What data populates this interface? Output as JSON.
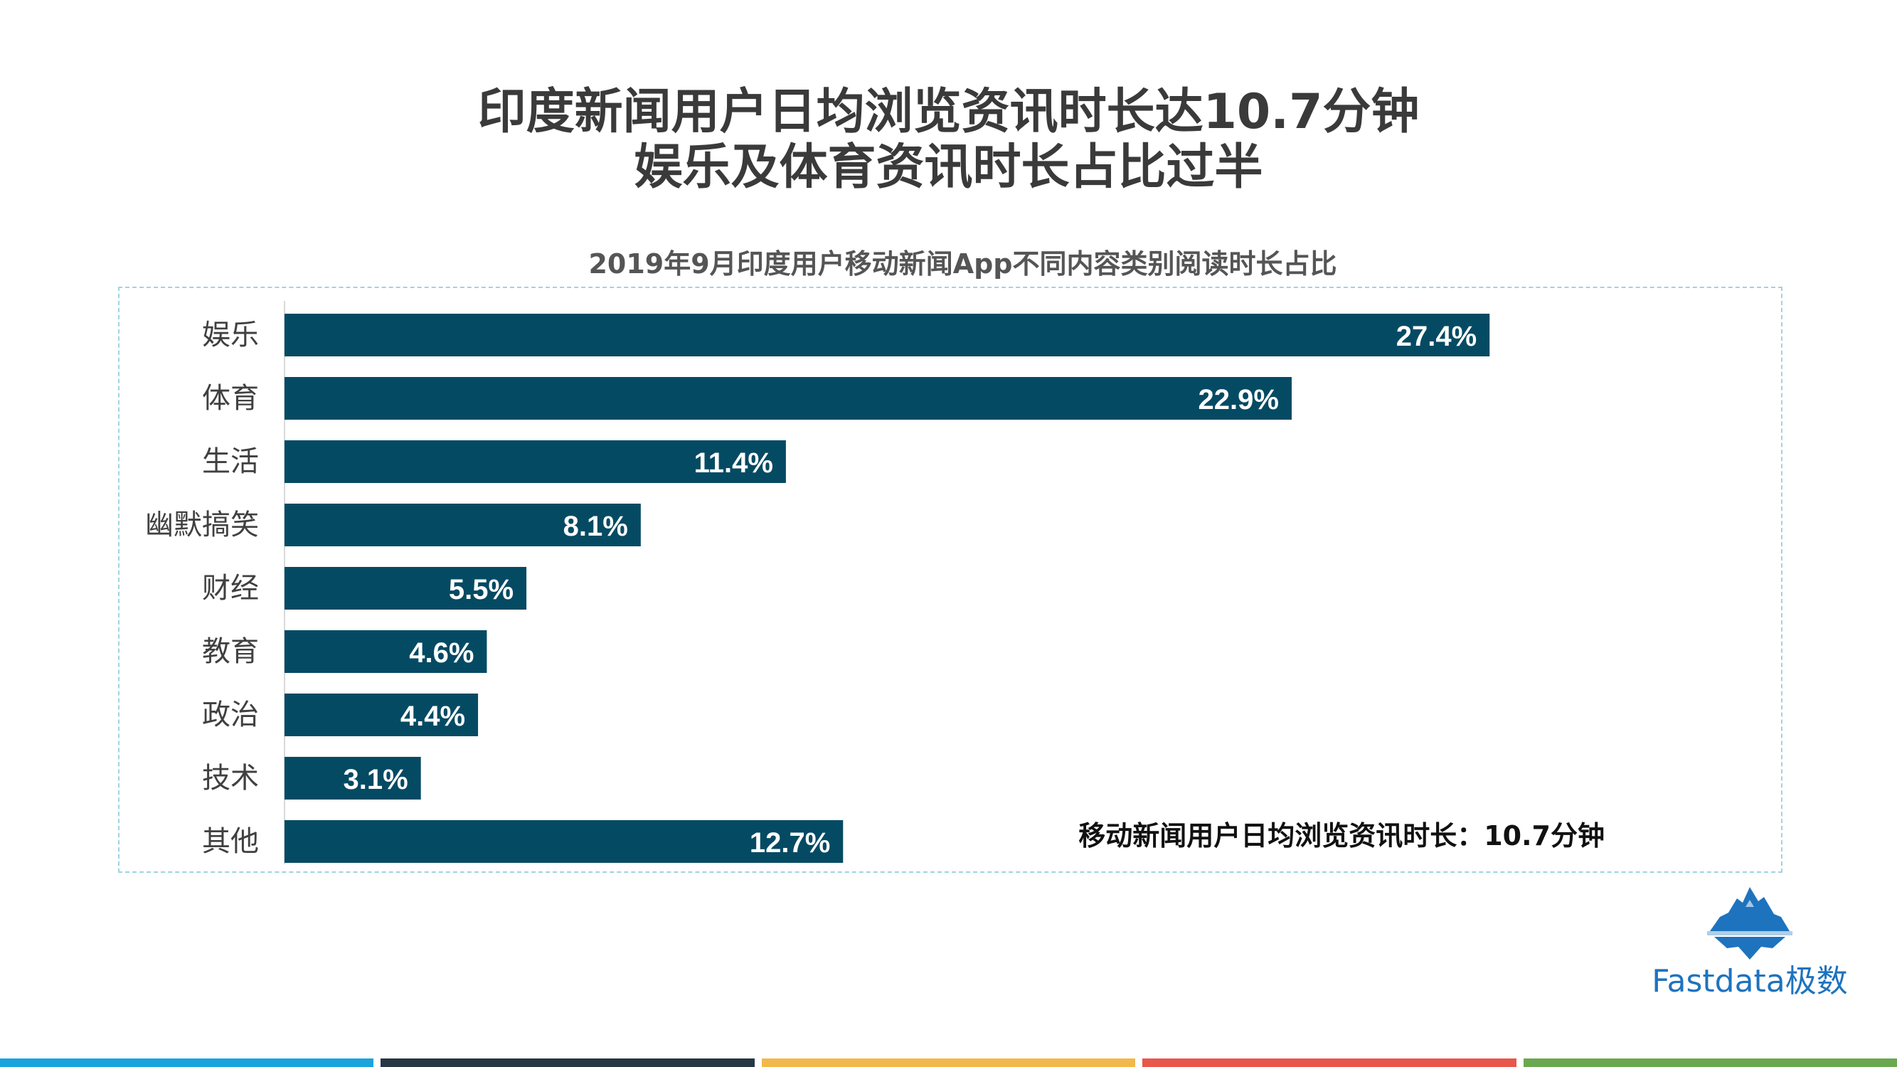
{
  "header": {
    "title_line1": "印度新闻用户日均浏览资讯时长达10.7分钟",
    "title_line2": "娱乐及体育资讯时长占比过半"
  },
  "chart_data": {
    "type": "bar",
    "orientation": "horizontal",
    "title": "2019年9月印度用户移动新闻App不同内容类别阅读时长占比",
    "categories": [
      "娱乐",
      "体育",
      "生活",
      "幽默搞笑",
      "财经",
      "教育",
      "政治",
      "技术",
      "其他"
    ],
    "values": [
      27.4,
      22.9,
      11.4,
      8.1,
      5.5,
      4.6,
      4.4,
      3.1,
      12.7
    ],
    "value_labels": [
      "27.4%",
      "22.9%",
      "11.4%",
      "8.1%",
      "5.5%",
      "4.6%",
      "4.4%",
      "3.1%",
      "12.7%"
    ],
    "unit": "%",
    "xlim": [
      0,
      30
    ],
    "bar_color": "#054a63",
    "label_color": "#ffffff",
    "grid": false,
    "annotation": "移动新闻用户日均浏览资讯时长：10.7分钟"
  },
  "logo": {
    "text": "Fastdata极数",
    "icon": "iceberg-logo-icon",
    "color": "#1e73be"
  },
  "footer_stripe_colors": [
    "#1aa3dd",
    "#263746",
    "#f2b84b",
    "#e8574a",
    "#6aa84f"
  ]
}
